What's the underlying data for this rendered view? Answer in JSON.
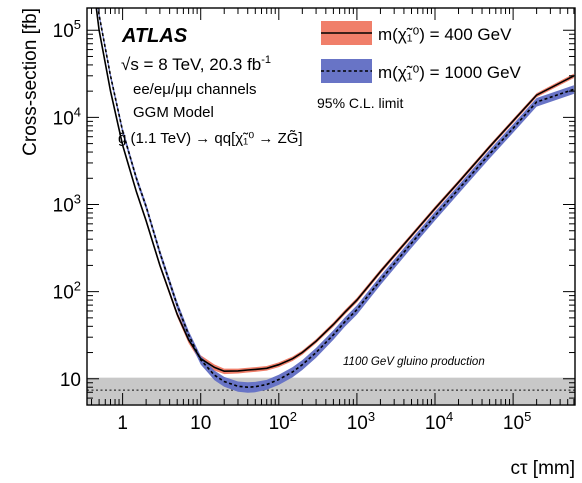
{
  "chart_data": {
    "type": "line",
    "xlabel": "cτ [mm]",
    "ylabel": "Cross-section [fb]",
    "xscale": "log",
    "yscale": "log",
    "xlim": [
      0.35,
      620000
    ],
    "ylim": [
      5,
      180000
    ],
    "x_ticks": [
      {
        "value": 1,
        "label": "1"
      },
      {
        "value": 10,
        "label": "10"
      },
      {
        "value": 100,
        "base": "10",
        "exp": "2"
      },
      {
        "value": 1000,
        "base": "10",
        "exp": "3"
      },
      {
        "value": 10000,
        "base": "10",
        "exp": "4"
      },
      {
        "value": 100000,
        "base": "10",
        "exp": "5"
      }
    ],
    "y_ticks": [
      {
        "value": 10,
        "label": "10"
      },
      {
        "value": 100,
        "base": "10",
        "exp": "2"
      },
      {
        "value": 1000,
        "base": "10",
        "exp": "3"
      },
      {
        "value": 10000,
        "base": "10",
        "exp": "4"
      },
      {
        "value": 100000,
        "base": "10",
        "exp": "5"
      }
    ],
    "series": [
      {
        "name": "m(χ̃₁⁰) = 400 GeV",
        "line": "solid",
        "line_color": "#000000",
        "band_color": "#f07f6a",
        "x": [
          0.4,
          0.5,
          0.7,
          1,
          1.5,
          2,
          3,
          5,
          7,
          10,
          15,
          20,
          30,
          40,
          50,
          70,
          100,
          150,
          200,
          300,
          500,
          700,
          1000,
          2000,
          5000,
          10000,
          20000,
          50000,
          100000,
          200000,
          600000
        ],
        "y": [
          500000,
          100000,
          20000,
          4800,
          1400,
          650,
          200,
          55,
          28,
          17,
          13.5,
          12.2,
          12.3,
          12.6,
          12.8,
          13.2,
          14.5,
          17,
          20,
          27,
          42,
          58,
          80,
          170,
          440,
          900,
          1800,
          4600,
          9100,
          18000,
          30000
        ],
        "band_lo": [
          480000,
          96000,
          19000,
          4600,
          1330,
          615,
          188,
          51,
          25.5,
          15.4,
          12.4,
          11.3,
          11.5,
          11.8,
          12.0,
          12.4,
          13.6,
          16.0,
          18.9,
          25.5,
          39.5,
          54.5,
          75,
          160,
          415,
          850,
          1700,
          4350,
          8600,
          17000,
          28300
        ],
        "band_hi": [
          520000,
          104000,
          21000,
          5000,
          1470,
          685,
          212,
          59,
          30.5,
          18.6,
          14.6,
          13.1,
          13.1,
          13.4,
          13.6,
          14.0,
          15.4,
          18.0,
          21.1,
          28.5,
          44.5,
          61.5,
          85,
          180,
          465,
          950,
          1900,
          4850,
          9600,
          19000,
          31800
        ]
      },
      {
        "name": "m(χ̃₁⁰) = 1000 GeV",
        "line": "dotted",
        "line_color": "#000000",
        "band_color": "#6874c6",
        "x": [
          0.4,
          0.5,
          0.7,
          1,
          1.5,
          2,
          3,
          5,
          7,
          10,
          15,
          20,
          30,
          40,
          50,
          70,
          100,
          150,
          200,
          300,
          500,
          700,
          1000,
          2000,
          5000,
          10000,
          20000,
          50000,
          100000,
          200000,
          600000
        ],
        "y": [
          600000,
          150000,
          30000,
          7000,
          2000,
          950,
          280,
          70,
          32,
          16.5,
          11.0,
          9.3,
          8.2,
          8.0,
          8.1,
          8.6,
          9.8,
          12.0,
          14.5,
          20,
          32,
          45,
          62,
          135,
          360,
          740,
          1500,
          3800,
          7500,
          15000,
          21000
        ],
        "band_lo": [
          560000,
          138000,
          27500,
          6400,
          1830,
          870,
          255,
          63,
          28.5,
          14.6,
          9.6,
          8.1,
          7.1,
          6.9,
          7.0,
          7.5,
          8.5,
          10.4,
          12.6,
          17.4,
          28,
          39.5,
          54.5,
          119,
          318,
          655,
          1330,
          3370,
          6650,
          13300,
          18600
        ],
        "band_hi": [
          640000,
          162000,
          32500,
          7600,
          2170,
          1030,
          305,
          77,
          35.5,
          18.4,
          12.4,
          10.5,
          9.3,
          9.1,
          9.2,
          9.7,
          11.1,
          13.6,
          16.4,
          22.6,
          36,
          50.5,
          69.5,
          151,
          402,
          825,
          1670,
          4230,
          8350,
          16700,
          23400
        ]
      }
    ],
    "reference_band": {
      "label": "1100 GeV gluino production",
      "central": 7.4,
      "lo": 5.1,
      "hi": 10.3,
      "color": "#c8c8c8"
    },
    "legend_placement": "top-right",
    "grid": false
  },
  "annotations": {
    "experiment": "ATLAS",
    "energy": "√s = 8 TeV, 20.3 fb",
    "energy_sup": "-1",
    "channels": "ee/eμ/μμ channels",
    "model": "GGM Model",
    "decay": "g̃ (1.1 TeV) → qq[χ̃₁⁰ → ZG̃]",
    "limit": "95% C.L. limit"
  }
}
